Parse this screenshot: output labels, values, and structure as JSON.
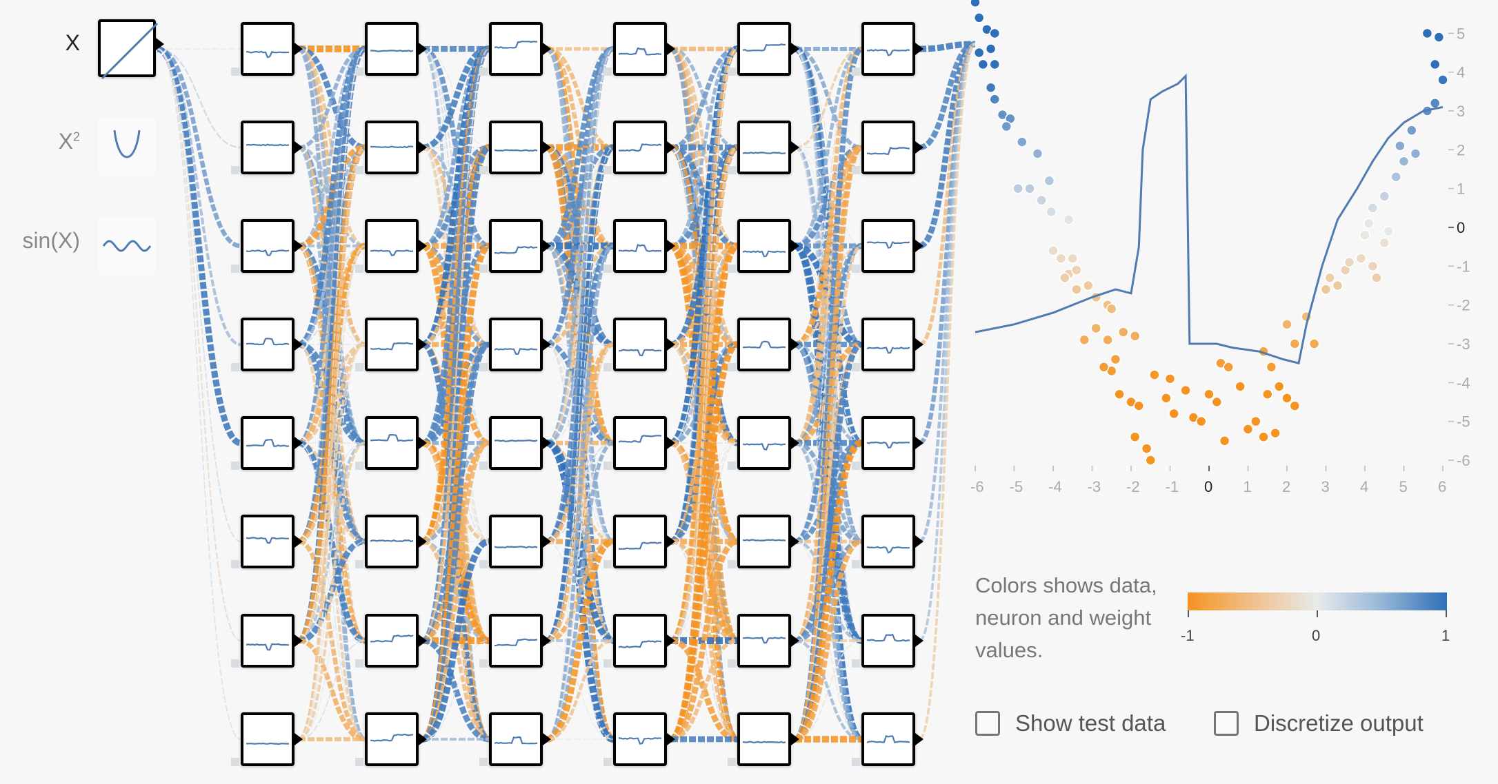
{
  "features": [
    {
      "label": "X",
      "icon": "linear-icon",
      "active": true
    },
    {
      "label": "X",
      "superscript": "2",
      "icon": "parabola-icon",
      "active": false
    },
    {
      "label": "sin(X)",
      "icon": "sine-wave-icon",
      "active": false
    }
  ],
  "network": {
    "hidden_layers": 6,
    "neurons_per_layer": 8,
    "colors": {
      "negative": "#f59322",
      "positive": "#2f6fb8",
      "neutral": "#e8eaeb"
    }
  },
  "output_plot": {
    "type": "scatter-with-line",
    "xlim": [
      -6,
      6
    ],
    "ylim": [
      -6,
      6
    ],
    "x_tick_labels": [
      "-6",
      "-5",
      "-4",
      "-3",
      "-2",
      "-1",
      "0",
      "1",
      "2",
      "3",
      "4",
      "5",
      "6"
    ],
    "y_tick_labels": [
      "5",
      "4",
      "3",
      "2",
      "1",
      "0",
      "-1",
      "-2",
      "-3",
      "-4",
      "-5",
      "-6"
    ],
    "chart_data": {
      "type": "scatter",
      "points": [
        {
          "x": -6.0,
          "y": 5.8
        },
        {
          "x": -5.9,
          "y": 5.4
        },
        {
          "x": -5.7,
          "y": 5.1
        },
        {
          "x": -5.5,
          "y": 5.0
        },
        {
          "x": -5.6,
          "y": 4.6
        },
        {
          "x": -5.9,
          "y": 4.5
        },
        {
          "x": -5.8,
          "y": 4.2
        },
        {
          "x": -5.5,
          "y": 4.2
        },
        {
          "x": -5.6,
          "y": 3.6
        },
        {
          "x": -5.5,
          "y": 3.3
        },
        {
          "x": -5.3,
          "y": 2.9
        },
        {
          "x": -5.1,
          "y": 2.8
        },
        {
          "x": -5.2,
          "y": 2.6
        },
        {
          "x": -4.8,
          "y": 2.2
        },
        {
          "x": -4.4,
          "y": 1.9
        },
        {
          "x": -4.9,
          "y": 1.0
        },
        {
          "x": -4.6,
          "y": 1.0
        },
        {
          "x": -4.1,
          "y": 1.2
        },
        {
          "x": -4.3,
          "y": 0.7
        },
        {
          "x": -4.05,
          "y": 0.4
        },
        {
          "x": -3.6,
          "y": 0.2
        },
        {
          "x": -4.0,
          "y": -0.6
        },
        {
          "x": -3.8,
          "y": -0.8
        },
        {
          "x": -3.5,
          "y": -0.8
        },
        {
          "x": -3.6,
          "y": -1.2
        },
        {
          "x": -3.4,
          "y": -1.1
        },
        {
          "x": -3.7,
          "y": -1.3
        },
        {
          "x": -3.4,
          "y": -1.6
        },
        {
          "x": -3.1,
          "y": -1.5
        },
        {
          "x": -2.9,
          "y": -1.8
        },
        {
          "x": -2.6,
          "y": -2.0
        },
        {
          "x": -2.5,
          "y": -2.1
        },
        {
          "x": -3.2,
          "y": -2.9
        },
        {
          "x": -2.9,
          "y": -2.6
        },
        {
          "x": -2.6,
          "y": -2.9
        },
        {
          "x": -2.2,
          "y": -2.7
        },
        {
          "x": -1.9,
          "y": -2.8
        },
        {
          "x": -2.4,
          "y": -3.4
        },
        {
          "x": -2.5,
          "y": -3.7
        },
        {
          "x": -2.7,
          "y": -3.6
        },
        {
          "x": -2.3,
          "y": -4.3
        },
        {
          "x": -2.0,
          "y": -4.5
        },
        {
          "x": -1.8,
          "y": -4.6
        },
        {
          "x": -1.9,
          "y": -5.4
        },
        {
          "x": -1.6,
          "y": -5.7
        },
        {
          "x": -1.5,
          "y": -6.0
        },
        {
          "x": -1.4,
          "y": -3.8
        },
        {
          "x": -1.0,
          "y": -3.9
        },
        {
          "x": -1.1,
          "y": -4.4
        },
        {
          "x": -0.9,
          "y": -4.8
        },
        {
          "x": -0.6,
          "y": -4.2
        },
        {
          "x": -0.4,
          "y": -4.9
        },
        {
          "x": -0.2,
          "y": -5.0
        },
        {
          "x": 0.0,
          "y": -4.3
        },
        {
          "x": 0.2,
          "y": -4.5
        },
        {
          "x": 0.3,
          "y": -3.5
        },
        {
          "x": 0.5,
          "y": -3.6
        },
        {
          "x": 0.4,
          "y": -5.5
        },
        {
          "x": 0.8,
          "y": -4.1
        },
        {
          "x": 1.0,
          "y": -5.2
        },
        {
          "x": 1.2,
          "y": -5.0
        },
        {
          "x": 1.4,
          "y": -5.4
        },
        {
          "x": 1.5,
          "y": -4.3
        },
        {
          "x": 1.8,
          "y": -4.1
        },
        {
          "x": 2.0,
          "y": -4.4
        },
        {
          "x": 1.7,
          "y": -5.3
        },
        {
          "x": 2.2,
          "y": -4.6
        },
        {
          "x": 1.6,
          "y": -3.6
        },
        {
          "x": 1.4,
          "y": -3.2
        },
        {
          "x": 2.0,
          "y": -2.5
        },
        {
          "x": 2.2,
          "y": -3.0
        },
        {
          "x": 2.5,
          "y": -2.3
        },
        {
          "x": 2.7,
          "y": -3.0
        },
        {
          "x": 3.0,
          "y": -1.6
        },
        {
          "x": 3.1,
          "y": -1.3
        },
        {
          "x": 3.3,
          "y": -1.5
        },
        {
          "x": 3.5,
          "y": -1.1
        },
        {
          "x": 3.6,
          "y": -0.9
        },
        {
          "x": 3.9,
          "y": -0.8
        },
        {
          "x": 4.2,
          "y": -1.0
        },
        {
          "x": 4.3,
          "y": -1.3
        },
        {
          "x": 4.5,
          "y": -0.4
        },
        {
          "x": 4.0,
          "y": -0.2
        },
        {
          "x": 4.1,
          "y": 0.1
        },
        {
          "x": 4.6,
          "y": -0.1
        },
        {
          "x": 4.2,
          "y": 0.5
        },
        {
          "x": 4.5,
          "y": 0.8
        },
        {
          "x": 4.8,
          "y": 1.3
        },
        {
          "x": 5.0,
          "y": 1.7
        },
        {
          "x": 5.3,
          "y": 1.9
        },
        {
          "x": 4.9,
          "y": 2.1
        },
        {
          "x": 5.2,
          "y": 2.5
        },
        {
          "x": 5.6,
          "y": 3.0
        },
        {
          "x": 5.8,
          "y": 3.2
        },
        {
          "x": 5.8,
          "y": 4.2
        },
        {
          "x": 5.9,
          "y": 4.9
        },
        {
          "x": 5.6,
          "y": 5.0
        },
        {
          "x": 6.0,
          "y": 3.8
        }
      ],
      "prediction_line": [
        {
          "x": -6.0,
          "y": -2.7
        },
        {
          "x": -5.0,
          "y": -2.5
        },
        {
          "x": -4.0,
          "y": -2.2
        },
        {
          "x": -3.0,
          "y": -1.8
        },
        {
          "x": -2.4,
          "y": -1.6
        },
        {
          "x": -2.0,
          "y": -1.7
        },
        {
          "x": -1.8,
          "y": -0.5
        },
        {
          "x": -1.7,
          "y": 2.0
        },
        {
          "x": -1.5,
          "y": 3.3
        },
        {
          "x": -1.2,
          "y": 3.5
        },
        {
          "x": -0.8,
          "y": 3.7
        },
        {
          "x": -0.6,
          "y": 3.9
        },
        {
          "x": -0.5,
          "y": -3.0
        },
        {
          "x": 0.2,
          "y": -3.0
        },
        {
          "x": 0.6,
          "y": -3.1
        },
        {
          "x": 1.3,
          "y": -3.2
        },
        {
          "x": 1.9,
          "y": -3.4
        },
        {
          "x": 2.3,
          "y": -3.5
        },
        {
          "x": 2.5,
          "y": -2.5
        },
        {
          "x": 2.9,
          "y": -1.0
        },
        {
          "x": 3.3,
          "y": 0.2
        },
        {
          "x": 3.8,
          "y": 1.0
        },
        {
          "x": 4.2,
          "y": 1.7
        },
        {
          "x": 4.6,
          "y": 2.3
        },
        {
          "x": 5.0,
          "y": 2.7
        },
        {
          "x": 5.5,
          "y": 3.0
        },
        {
          "x": 6.0,
          "y": 3.1
        }
      ]
    }
  },
  "legend": {
    "text": "Colors shows data, neuron and weight values.",
    "scale_labels": [
      "-1",
      "0",
      "1"
    ]
  },
  "options": {
    "show_test_data": "Show test data",
    "discretize_output": "Discretize output"
  }
}
